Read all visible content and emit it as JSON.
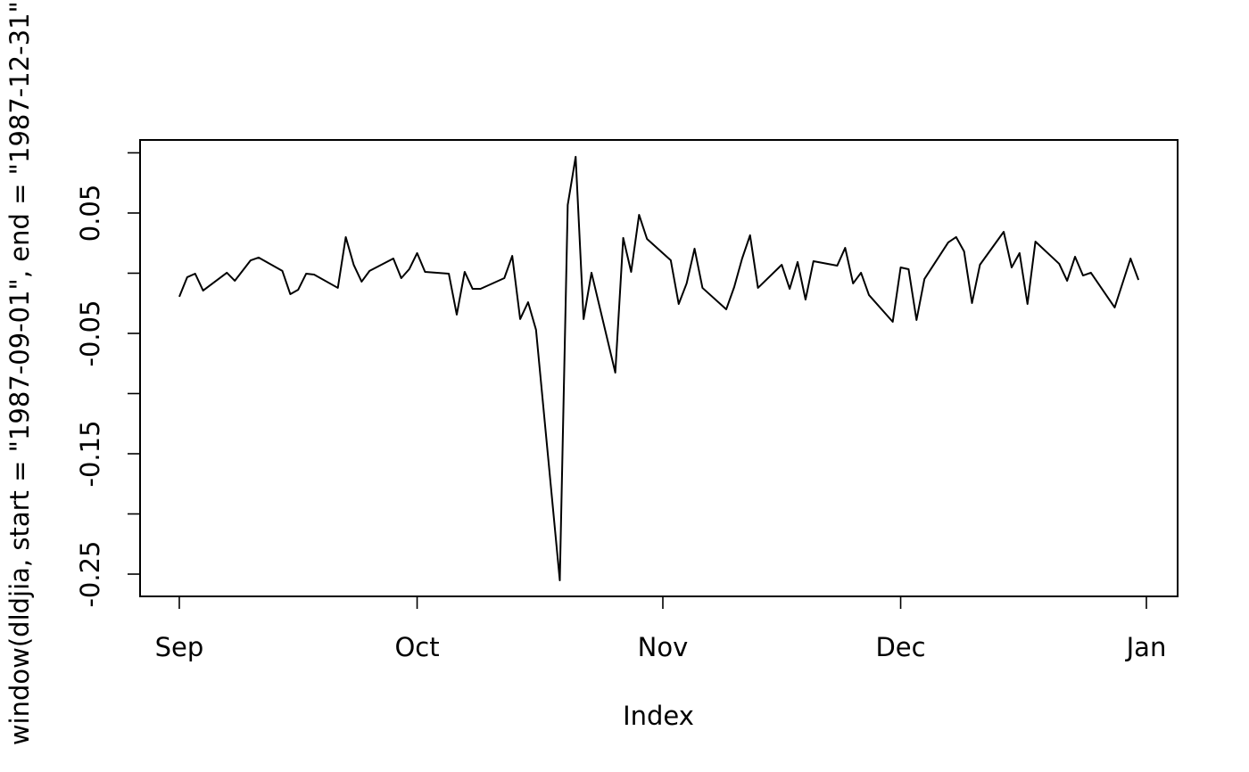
{
  "chart_data": {
    "type": "line",
    "x_label": "Index",
    "y_label": "window(dldjia, start = \"1987-09-01\", end = \"1987-12-31\")",
    "color": "#000000",
    "x": [
      0,
      1,
      2,
      3,
      6,
      7,
      9,
      10,
      13,
      14,
      15,
      16,
      17,
      20,
      21,
      22,
      23,
      24,
      27,
      28,
      29,
      30,
      31,
      34,
      35,
      36,
      37,
      38,
      41,
      42,
      43,
      44,
      45,
      48,
      49,
      50,
      51,
      52,
      55,
      56,
      57,
      58,
      59,
      62,
      63,
      64,
      65,
      66,
      69,
      70,
      71,
      72,
      73,
      76,
      77,
      78,
      79,
      80,
      83,
      84,
      85,
      86,
      87,
      90,
      91,
      92,
      93,
      94,
      97,
      98,
      99,
      100,
      101,
      104,
      105,
      106,
      107,
      108,
      111,
      112,
      113,
      114,
      115,
      118,
      120,
      121
    ],
    "values": [
      -0.0196,
      -0.0033,
      -0.0004,
      -0.0144,
      0.0004,
      -0.0063,
      0.0107,
      0.013,
      0.0019,
      -0.0174,
      -0.0137,
      -0.0004,
      -0.0011,
      -0.0122,
      0.03,
      0.007,
      -0.007,
      0.0019,
      0.0122,
      -0.0041,
      0.0033,
      0.0167,
      0.0011,
      -0.0004,
      -0.0344,
      0.0011,
      -0.013,
      -0.013,
      -0.0041,
      0.0144,
      -0.0381,
      -0.0241,
      -0.047,
      -0.2552,
      0.0567,
      0.0967,
      -0.0381,
      0.0004,
      -0.0826,
      0.0293,
      0.0011,
      0.0485,
      0.0285,
      0.0107,
      -0.0256,
      -0.0085,
      0.0204,
      -0.0122,
      -0.03,
      -0.0115,
      0.0122,
      0.0315,
      -0.0122,
      0.007,
      -0.013,
      0.0093,
      -0.0219,
      0.01,
      0.0063,
      0.0211,
      -0.0085,
      0.0004,
      -0.0181,
      -0.0404,
      0.0048,
      0.0033,
      -0.0389,
      -0.0048,
      0.0256,
      0.03,
      0.0181,
      -0.0248,
      0.007,
      0.0344,
      0.0048,
      0.0167,
      -0.0256,
      0.0263,
      0.0078,
      -0.0063,
      0.0137,
      -0.0019,
      0.0004,
      -0.0285,
      0.0122,
      -0.0056
    ],
    "xlim": [
      -4.95,
      125.94
    ],
    "xticks": [
      {
        "value": 0,
        "label": "Sep"
      },
      {
        "value": 30,
        "label": "Oct"
      },
      {
        "value": 61,
        "label": "Nov"
      },
      {
        "value": 91,
        "label": "Dec"
      },
      {
        "value": 122,
        "label": "Jan"
      }
    ],
    "ylim": [
      -0.2685,
      0.1107
    ],
    "yticks": [
      -0.25,
      {
        "value": -0.2,
        "label": null
      },
      -0.15,
      {
        "value": -0.1,
        "label": null
      },
      -0.05,
      {
        "value": 0,
        "label": null
      },
      0.05,
      {
        "value": 0.1,
        "label": null
      }
    ]
  }
}
